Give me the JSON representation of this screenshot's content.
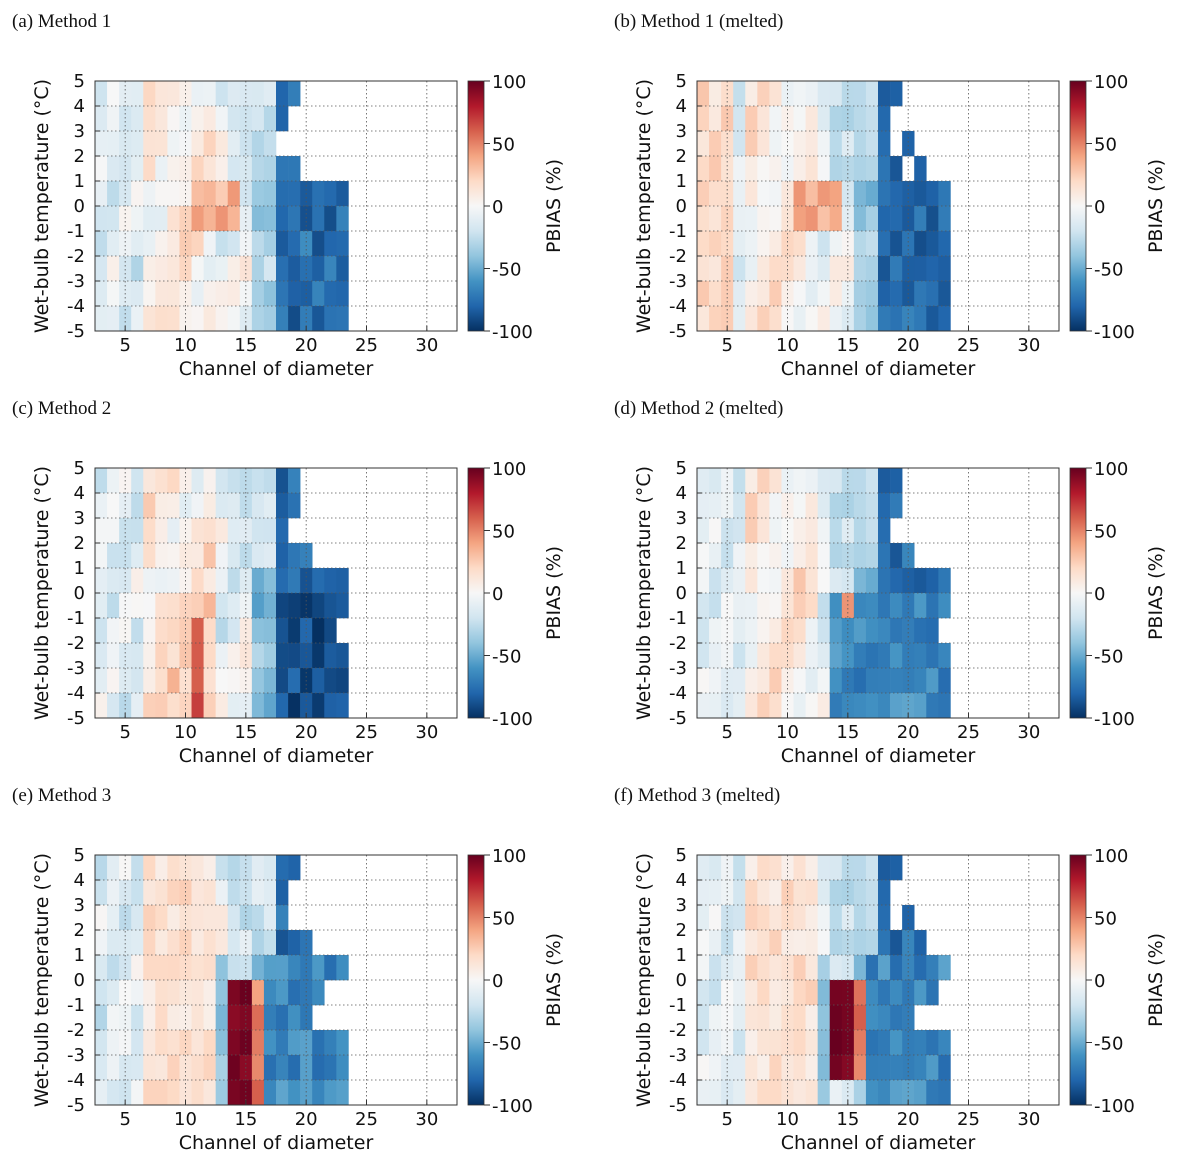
{
  "figure": {
    "panels": [
      {
        "id": "a",
        "title": "(a) Method 1",
        "variant": "m1"
      },
      {
        "id": "b",
        "title": "(b) Method 1 (melted)",
        "variant": "m1m"
      },
      {
        "id": "c",
        "title": "(c) Method 2",
        "variant": "m2"
      },
      {
        "id": "d",
        "title": "(d) Method 2 (melted)",
        "variant": "m2m"
      },
      {
        "id": "e",
        "title": "(e) Method 3",
        "variant": "m3"
      },
      {
        "id": "f",
        "title": "(f) Method 3 (melted)",
        "variant": "m3m"
      }
    ],
    "xlabel": "Channel of diameter",
    "ylabel": "Wet-bulb temperature (°C)",
    "colorbar_label": "PBIAS (%)",
    "x_ticks": [
      "5",
      "10",
      "15",
      "20",
      "25",
      "30"
    ],
    "x_tick_values": [
      5,
      10,
      15,
      20,
      25,
      30
    ],
    "y_ticks": [
      "5",
      "4",
      "3",
      "2",
      "1",
      "0",
      "-1",
      "-2",
      "-3",
      "-4",
      "-5"
    ],
    "y_tick_values": [
      5,
      4,
      3,
      2,
      1,
      0,
      -1,
      -2,
      -3,
      -4,
      -5
    ],
    "colorbar_ticks": [
      "100",
      "50",
      "0",
      "-50",
      "-100"
    ],
    "colorbar_tick_values": [
      100,
      50,
      0,
      -50,
      -100
    ]
  },
  "chart_data": {
    "type": "heatmap",
    "x": "diameter channel (3-32)",
    "y": "wet-bulb temperature bin (-5 to 5 °C)",
    "value": "PBIAS (%)",
    "xlim": [
      2.5,
      32.5
    ],
    "ylim": [
      -5,
      5
    ],
    "clim": [
      -100,
      100
    ],
    "colormap": "RdBu_r",
    "panels": [
      {
        "name": "(a) Method 1",
        "max_channel": 23,
        "description": "mostly neutral to slight positive bias for channels 3-15, strong negative bias (down to -90%) for channels 18-23"
      },
      {
        "name": "(b) Method 1 (melted)",
        "max_channel": 23,
        "description": "similar to (a) with slightly stronger positive bias at channels 3-6"
      },
      {
        "name": "(c) Method 2",
        "max_channel": 23,
        "description": "positive bias up to ~+60% near channel 11 at -2 to -5 °C, strong negative bias for channels 16-23"
      },
      {
        "name": "(d) Method 2 (melted)",
        "max_channel": 23,
        "description": "weak positive bias at channels 4-14, strong negative bias for channels 15-23"
      },
      {
        "name": "(e) Method 3",
        "max_channel": 23,
        "description": "extreme positive bias (~+100%) for channels 14-16 below 0 °C, negative bias for channels 17-23"
      },
      {
        "name": "(f) Method 3 (melted)",
        "max_channel": 23,
        "description": "extreme positive bias (~+100%) for channels 14-16 between -4 and 0 °C, negative bias for channels 17-23"
      }
    ]
  }
}
